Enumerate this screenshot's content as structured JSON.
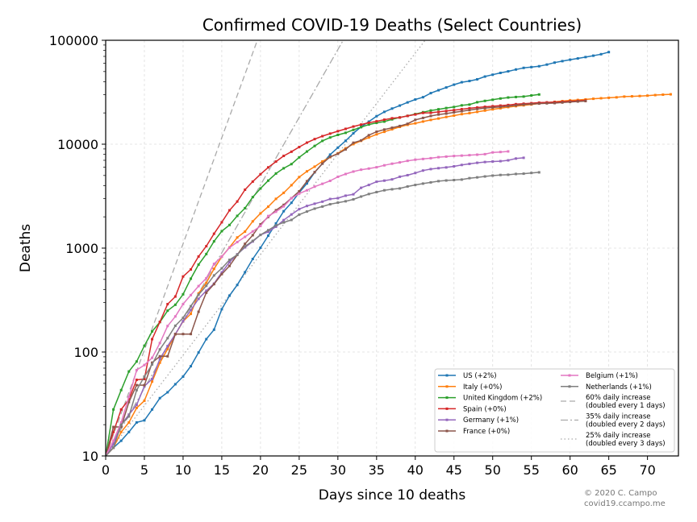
{
  "chart_data": {
    "type": "line",
    "title": "Confirmed COVID-19 Deaths (Select Countries)",
    "xlabel": "Days since 10 deaths",
    "ylabel": "Deaths",
    "xlim": [
      0,
      74
    ],
    "ylim": [
      10,
      100000
    ],
    "yscale": "log",
    "grid": true,
    "legend_position": "lower-right",
    "x_ticks": [
      0,
      5,
      10,
      15,
      20,
      25,
      30,
      35,
      40,
      45,
      50,
      55,
      60,
      65,
      70
    ],
    "x_tick_labels": [
      "0",
      "5",
      "10",
      "15",
      "20",
      "25",
      "30",
      "35",
      "40",
      "45",
      "50",
      "55",
      "60",
      "65",
      "70"
    ],
    "y_ticks": [
      10,
      100,
      1000,
      10000,
      100000
    ],
    "y_tick_labels": [
      "10",
      "100",
      "1000",
      "10000",
      "100000"
    ],
    "series": [
      {
        "name": "US (+2%)",
        "color": "#1f77b4",
        "x": [
          0,
          1,
          2,
          3,
          4,
          5,
          6,
          7,
          8,
          9,
          10,
          11,
          12,
          13,
          14,
          15,
          16,
          17,
          18,
          19,
          20,
          21,
          22,
          23,
          24,
          25,
          26,
          27,
          28,
          29,
          30,
          31,
          32,
          33,
          34,
          35,
          36,
          37,
          38,
          39,
          40,
          41,
          42,
          43,
          44,
          45,
          46,
          47,
          48,
          49,
          50,
          51,
          52,
          53,
          54,
          55,
          56,
          57,
          58,
          59,
          60,
          61,
          62,
          63,
          64,
          65
        ],
        "y": [
          10,
          12,
          14,
          17,
          21,
          22,
          28,
          36,
          41,
          49,
          58,
          73,
          99,
          133,
          164,
          258,
          349,
          442,
          586,
          786,
          1008,
          1316,
          1726,
          2265,
          2731,
          3420,
          4192,
          5367,
          6501,
          7938,
          9265,
          10783,
          12722,
          14695,
          16478,
          18586,
          20463,
          22020,
          23529,
          25239,
          26922,
          28326,
          31002,
          33049,
          35134,
          37406,
          39470,
          40548,
          42094,
          44760,
          46625,
          48545,
          50234,
          52344,
          54256,
          55148,
          56259,
          58355,
          60967,
          62996,
          65068,
          66868,
          68920,
          71064,
          73431,
          76928
        ]
      },
      {
        "name": "Italy (+0%)",
        "color": "#ff7f0e",
        "x": [
          0,
          1,
          2,
          3,
          4,
          5,
          6,
          7,
          8,
          9,
          10,
          11,
          12,
          13,
          14,
          15,
          16,
          17,
          18,
          19,
          20,
          21,
          22,
          23,
          24,
          25,
          26,
          27,
          28,
          29,
          30,
          31,
          32,
          33,
          34,
          35,
          36,
          37,
          38,
          39,
          40,
          41,
          42,
          43,
          44,
          45,
          46,
          47,
          48,
          49,
          50,
          51,
          52,
          53,
          54,
          55,
          56,
          57,
          58,
          59,
          60,
          61,
          62,
          63,
          64,
          65,
          66,
          67,
          68,
          69,
          70,
          71,
          72,
          73
        ],
        "y": [
          10,
          12,
          17,
          21,
          29,
          34,
          52,
          79,
          107,
          148,
          197,
          233,
          366,
          463,
          631,
          827,
          1016,
          1266,
          1441,
          1809,
          2158,
          2503,
          2978,
          3405,
          4032,
          4825,
          5476,
          6077,
          6820,
          7503,
          8165,
          9134,
          10023,
          10779,
          11591,
          12428,
          13155,
          13915,
          14681,
          15362,
          15887,
          16523,
          17127,
          17669,
          18279,
          18849,
          19468,
          19899,
          20465,
          21067,
          21645,
          22170,
          22745,
          23227,
          23660,
          24114,
          24648,
          25085,
          25549,
          25969,
          26384,
          26644,
          26977,
          27359,
          27682,
          27967,
          28236,
          28710,
          28884,
          29079,
          29315,
          29684,
          29958,
          30201
        ]
      },
      {
        "name": "United Kingdom (+2%)",
        "color": "#2ca02c",
        "x": [
          0,
          1,
          2,
          3,
          4,
          5,
          6,
          7,
          8,
          9,
          10,
          11,
          12,
          13,
          14,
          15,
          16,
          17,
          18,
          19,
          20,
          21,
          22,
          23,
          24,
          25,
          26,
          27,
          28,
          29,
          30,
          31,
          32,
          33,
          34,
          35,
          36,
          37,
          38,
          39,
          40,
          41,
          42,
          43,
          44,
          45,
          46,
          47,
          48,
          49,
          50,
          51,
          52,
          53,
          54,
          55,
          56
        ],
        "y": [
          10,
          28,
          43,
          65,
          81,
          115,
          158,
          194,
          250,
          285,
          359,
          508,
          694,
          877,
          1161,
          1455,
          1669,
          2043,
          2425,
          3095,
          3747,
          4461,
          5221,
          5865,
          6433,
          7471,
          8505,
          9608,
          10760,
          11599,
          12285,
          12868,
          13729,
          14576,
          15464,
          16060,
          16509,
          17337,
          18100,
          18738,
          19506,
          20319,
          21092,
          21678,
          22271,
          22792,
          23635,
          24055,
          25347,
          26097,
          26771,
          27510,
          28131,
          28446,
          28734,
          29427,
          30076
        ]
      },
      {
        "name": "Spain (+0%)",
        "color": "#d62728",
        "x": [
          0,
          1,
          2,
          3,
          4,
          5,
          6,
          7,
          8,
          9,
          10,
          11,
          12,
          13,
          14,
          15,
          16,
          17,
          18,
          19,
          20,
          21,
          22,
          23,
          24,
          25,
          26,
          27,
          28,
          29,
          30,
          31,
          32,
          33,
          34,
          35,
          36,
          37,
          38,
          39,
          40,
          41,
          42,
          43,
          44,
          45,
          46,
          47,
          48,
          49,
          50,
          51,
          52,
          53,
          54,
          55,
          56,
          57,
          58,
          59,
          60,
          61,
          62
        ],
        "y": [
          10,
          17,
          28,
          35,
          54,
          55,
          133,
          195,
          289,
          342,
          533,
          623,
          830,
          1043,
          1375,
          1772,
          2311,
          2808,
          3647,
          4365,
          5138,
          5982,
          6803,
          7716,
          8464,
          9387,
          10348,
          11198,
          11947,
          12641,
          13341,
          14045,
          14792,
          15447,
          16081,
          16606,
          17209,
          17756,
          18056,
          18708,
          19315,
          20002,
          20043,
          20453,
          20852,
          21282,
          21717,
          22157,
          22524,
          22902,
          23190,
          23521,
          23822,
          24275,
          24543,
          24824,
          25100,
          25264,
          25428,
          25613,
          25857,
          26070,
          26299
        ]
      },
      {
        "name": "Germany (+1%)",
        "color": "#9467bd",
        "x": [
          0,
          1,
          2,
          3,
          4,
          5,
          6,
          7,
          8,
          9,
          10,
          11,
          12,
          13,
          14,
          15,
          16,
          17,
          18,
          19,
          20,
          21,
          22,
          23,
          24,
          25,
          26,
          27,
          28,
          29,
          30,
          31,
          32,
          33,
          34,
          35,
          36,
          37,
          38,
          39,
          40,
          41,
          42,
          43,
          44,
          45,
          46,
          47,
          48,
          49,
          50,
          51,
          52,
          53,
          54
        ],
        "y": [
          10,
          13,
          20,
          25,
          31,
          47,
          55,
          86,
          114,
          149,
          198,
          253,
          325,
          389,
          455,
          583,
          732,
          872,
          1017,
          1158,
          1342,
          1434,
          1607,
          1861,
          2107,
          2373,
          2544,
          2673,
          2799,
          2969,
          3022,
          3194,
          3294,
          3804,
          4052,
          4352,
          4459,
          4586,
          4862,
          5033,
          5279,
          5575,
          5760,
          5877,
          5976,
          6126,
          6314,
          6467,
          6623,
          6736,
          6812,
          6866,
          6993,
          7275,
          7395
        ]
      },
      {
        "name": "France (+0%)",
        "color": "#8c564b",
        "x": [
          0,
          1,
          2,
          3,
          4,
          5,
          6,
          7,
          8,
          9,
          10,
          11,
          12,
          13,
          14,
          15,
          16,
          17,
          18,
          19,
          20,
          21,
          22,
          23,
          24,
          25,
          26,
          27,
          28,
          29,
          30,
          31,
          32,
          33,
          34,
          35,
          36,
          37,
          38,
          39,
          40,
          41,
          42,
          43,
          44,
          45,
          46,
          47,
          48,
          49,
          50,
          51,
          52,
          53,
          54,
          55,
          56,
          57,
          58,
          59,
          60,
          61,
          62
        ],
        "y": [
          10,
          19,
          19,
          33,
          48,
          48,
          79,
          91,
          91,
          149,
          149,
          149,
          244,
          372,
          450,
          562,
          674,
          860,
          1100,
          1331,
          1696,
          1995,
          2314,
          2606,
          3024,
          3523,
          4403,
          5387,
          6507,
          7560,
          8078,
          8911,
          10328,
          10869,
          12210,
          13197,
          13832,
          14393,
          14967,
          15712,
          17148,
          17901,
          18683,
          19303,
          19694,
          20240,
          20765,
          21296,
          21825,
          22215,
          22580,
          22827,
          23262,
          23635,
          24059,
          24348,
          24582,
          24732,
          24864,
          25168,
          25502,
          25750,
          25993
        ]
      },
      {
        "name": "Belgium (+1%)",
        "color": "#e377c2",
        "x": [
          0,
          1,
          2,
          3,
          4,
          5,
          6,
          7,
          8,
          9,
          10,
          11,
          12,
          13,
          14,
          15,
          16,
          17,
          18,
          19,
          20,
          21,
          22,
          23,
          24,
          25,
          26,
          27,
          28,
          29,
          30,
          31,
          32,
          33,
          34,
          35,
          36,
          37,
          38,
          39,
          40,
          41,
          42,
          43,
          44,
          45,
          46,
          47,
          48,
          49,
          50,
          51,
          52
        ],
        "y": [
          10,
          14,
          21,
          37,
          67,
          75,
          88,
          122,
          178,
          220,
          289,
          353,
          431,
          513,
          705,
          828,
          1011,
          1143,
          1283,
          1447,
          1632,
          2035,
          2240,
          2523,
          3019,
          3346,
          3600,
          3903,
          4157,
          4440,
          4857,
          5163,
          5453,
          5683,
          5828,
          5998,
          6262,
          6490,
          6679,
          6917,
          7094,
          7207,
          7331,
          7501,
          7594,
          7703,
          7765,
          7844,
          7924,
          8016,
          8339,
          8415,
          8521
        ]
      },
      {
        "name": "Netherlands (+1%)",
        "color": "#7f7f7f",
        "x": [
          0,
          1,
          2,
          3,
          4,
          5,
          6,
          7,
          8,
          9,
          10,
          11,
          12,
          13,
          14,
          15,
          16,
          17,
          18,
          19,
          20,
          21,
          22,
          23,
          24,
          25,
          26,
          27,
          28,
          29,
          30,
          31,
          32,
          33,
          34,
          35,
          36,
          37,
          38,
          39,
          40,
          41,
          42,
          43,
          44,
          45,
          46,
          47,
          48,
          49,
          50,
          51,
          52,
          53,
          54,
          55,
          56
        ],
        "y": [
          10,
          12,
          20,
          24,
          43,
          58,
          76,
          106,
          136,
          179,
          213,
          276,
          356,
          434,
          546,
          639,
          771,
          864,
          1039,
          1173,
          1339,
          1487,
          1651,
          1766,
          1867,
          2101,
          2248,
          2396,
          2511,
          2643,
          2737,
          2823,
          2945,
          3134,
          3315,
          3459,
          3601,
          3684,
          3751,
          3916,
          4054,
          4177,
          4289,
          4409,
          4475,
          4518,
          4566,
          4711,
          4795,
          4893,
          4987,
          5056,
          5082,
          5168,
          5204,
          5288,
          5359
        ]
      }
    ],
    "reference_lines": [
      {
        "name": "60% daily increase\n(doubled every 1 days)",
        "rate": 0.6,
        "color": "#aaaaaa",
        "dash": "dashed"
      },
      {
        "name": "35% daily increase\n(doubled every 2 days)",
        "rate": 0.35,
        "color": "#aaaaaa",
        "dash": "dashdot"
      },
      {
        "name": "25% daily increase\n(doubled every 3 days)",
        "rate": 0.25,
        "color": "#aaaaaa",
        "dash": "dotted"
      }
    ]
  },
  "credit": {
    "line1": "© 2020 C. Campo",
    "line2": "covid19.ccampo.me"
  }
}
